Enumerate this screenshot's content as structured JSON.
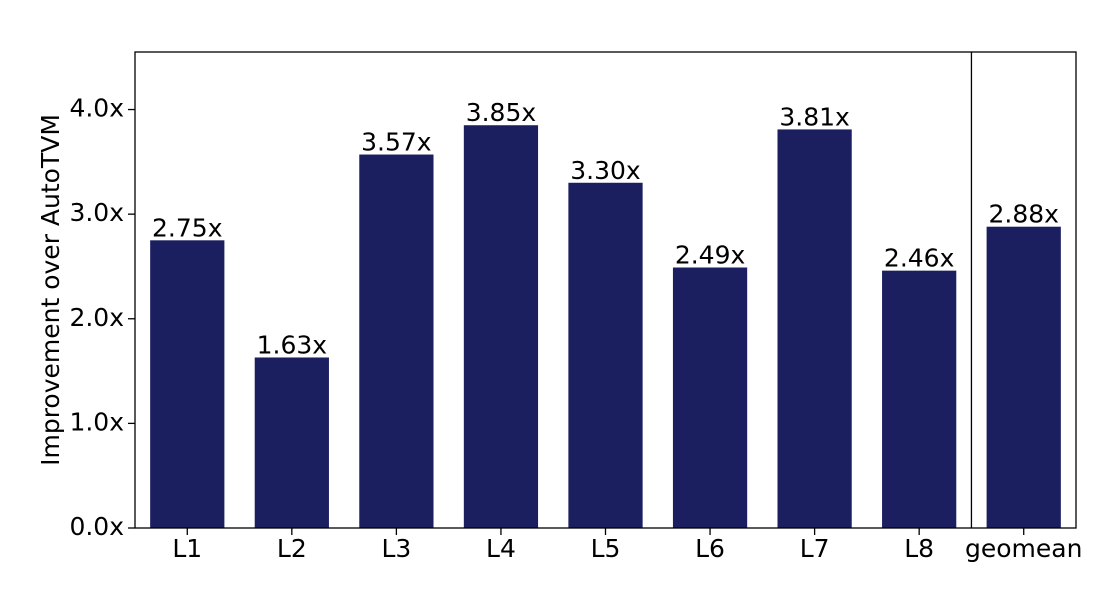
{
  "chart_data": {
    "type": "bar",
    "y_label": "Improvement over AutoTVM",
    "categories": [
      "L1",
      "L2",
      "L3",
      "L4",
      "L5",
      "L6",
      "L7",
      "L8",
      "geomean"
    ],
    "values": [
      2.75,
      1.63,
      3.57,
      3.85,
      3.3,
      2.49,
      3.81,
      2.46,
      2.88
    ],
    "value_labels": [
      "2.75x",
      "1.63x",
      "3.57x",
      "3.85x",
      "3.30x",
      "2.49x",
      "3.81x",
      "2.46x",
      "2.88x"
    ],
    "color": "#1b1f5f",
    "ylim": [
      0,
      4.55
    ],
    "yticks": [
      {
        "value": 0,
        "label": "0.0x"
      },
      {
        "value": 1,
        "label": "1.0x"
      },
      {
        "value": 2,
        "label": "2.0x"
      },
      {
        "value": 3,
        "label": "3.0x"
      },
      {
        "value": 4,
        "label": "4.0x"
      }
    ],
    "grid": false
  }
}
